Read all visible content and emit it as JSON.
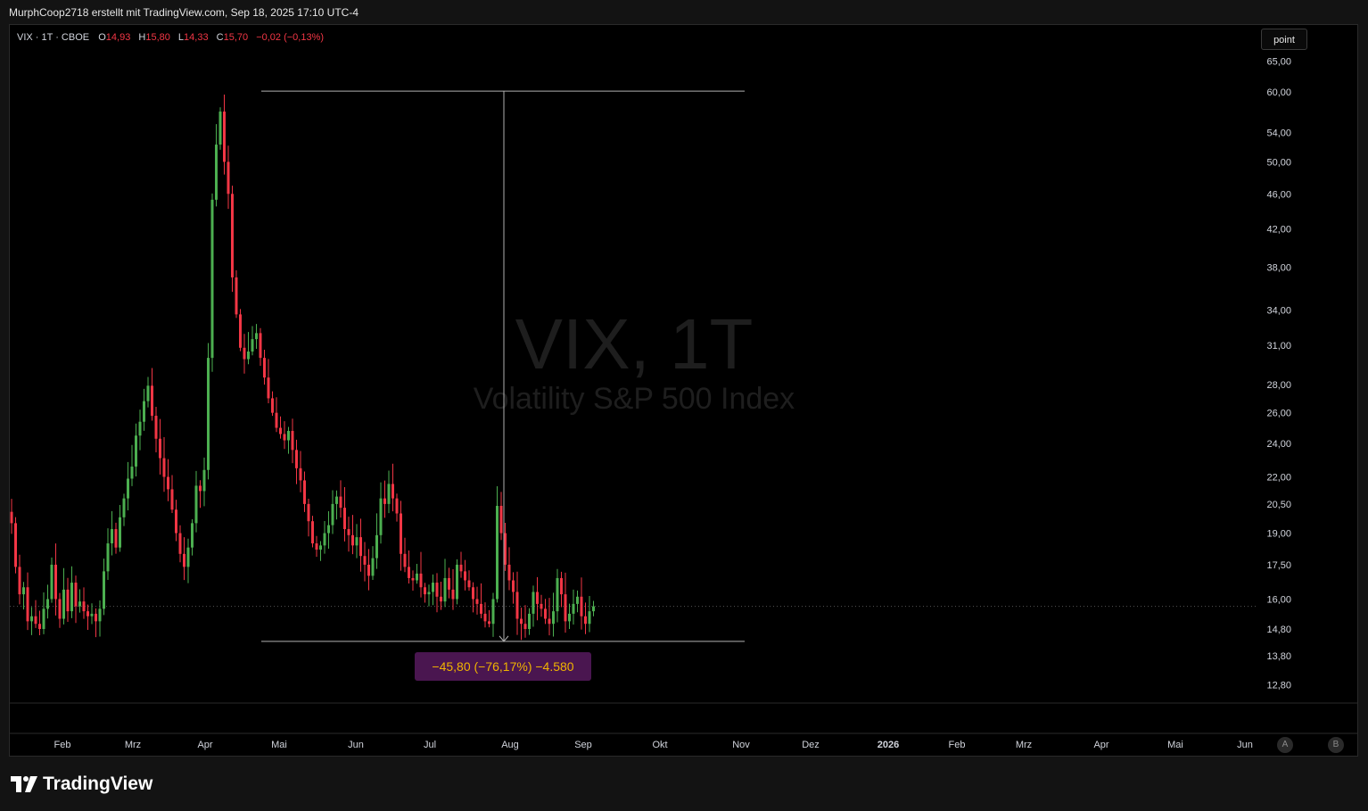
{
  "header": {
    "caption": "MurphCoop2718 erstellt mit TradingView.com, Sep 18, 2025 17:10 UTC-4"
  },
  "legend": {
    "symbol": "VIX · 1T · CBOE",
    "open_label": "O",
    "open_value": "14,93",
    "high_label": "H",
    "high_value": "15,80",
    "low_label": "L",
    "low_value": "14,33",
    "close_label": "C",
    "close_value": "15,70",
    "change": "−0,02 (−0,13%)"
  },
  "toolbar": {
    "point_label": "point"
  },
  "watermark": {
    "title": "VIX, 1T",
    "subtitle": "Volatility S&P 500 Index"
  },
  "measurement": {
    "label": "−45,80 (−76,17%) −4.580",
    "top_price": 60.13,
    "bottom_price": 14.33
  },
  "scale_buttons": {
    "a": "A",
    "b": "B"
  },
  "footer": {
    "brand": "TradingView"
  },
  "colors": {
    "up": "#4caf50",
    "down": "#f23645",
    "background": "#000000",
    "measure_box": "#4a1650",
    "measure_text": "#f0b400"
  },
  "chart_data": {
    "type": "candlestick",
    "y_scale": "log",
    "ylim": [
      12.0,
      70.0
    ],
    "y_ticks": [
      "65,00",
      "60,00",
      "54,00",
      "50,00",
      "46,00",
      "42,00",
      "38,00",
      "34,00",
      "31,00",
      "28,00",
      "26,00",
      "24,00",
      "22,00",
      "20,50",
      "19,00",
      "17,50",
      "16,00",
      "14,80",
      "13,80",
      "12,80"
    ],
    "x_ticks": [
      "Feb",
      "Mrz",
      "Apr",
      "Mai",
      "Jun",
      "Jul",
      "Aug",
      "Sep",
      "Okt",
      "Nov",
      "Dez",
      "2026",
      "Feb",
      "Mrz",
      "Apr",
      "Mai",
      "Jun"
    ],
    "last_price": 15.7,
    "closes": [
      19.5,
      17.4,
      16.2,
      16.5,
      15.1,
      15.3,
      15.0,
      14.8,
      15.6,
      16.0,
      17.5,
      16.0,
      15.2,
      16.4,
      15.5,
      16.7,
      15.7,
      15.9,
      15.5,
      15.3,
      15.4,
      15.1,
      15.6,
      17.2,
      18.5,
      19.2,
      18.3,
      19.8,
      20.8,
      21.9,
      22.6,
      24.5,
      25.4,
      26.8,
      27.9,
      25.8,
      24.3,
      23.1,
      22.0,
      21.3,
      20.2,
      19.0,
      18.0,
      17.4,
      18.3,
      19.5,
      21.5,
      21.2,
      22.4,
      30.0,
      45.3,
      52.3,
      57.0,
      50.0,
      46.0,
      37.0,
      33.6,
      30.8,
      29.9,
      30.5,
      31.5,
      32.0,
      30.0,
      28.5,
      27.0,
      26.0,
      25.0,
      24.6,
      24.2,
      24.8,
      23.6,
      22.5,
      21.8,
      20.5,
      19.6,
      18.5,
      18.2,
      18.4,
      19.0,
      19.4,
      20.5,
      20.9,
      20.3,
      19.2,
      18.9,
      18.4,
      18.8,
      17.9,
      17.5,
      17.0,
      17.8,
      18.9,
      20.8,
      20.5,
      21.6,
      20.8,
      20.0,
      18.0,
      17.4,
      16.9,
      16.8,
      17.1,
      16.5,
      16.2,
      16.3,
      16.7,
      16.1,
      15.9,
      16.9,
      16.4,
      16.0,
      17.5,
      17.2,
      16.8,
      16.5,
      16.0,
      15.8,
      15.4,
      15.1,
      15.0,
      16.0,
      20.4,
      19.0,
      17.5,
      16.8,
      16.3,
      15.2,
      15.0,
      14.8,
      15.4,
      16.3,
      15.8,
      15.6,
      15.2,
      15.0,
      15.5,
      16.9,
      16.2,
      15.1,
      15.4,
      15.8,
      16.1,
      15.3,
      15.0,
      15.5,
      15.7
    ]
  }
}
